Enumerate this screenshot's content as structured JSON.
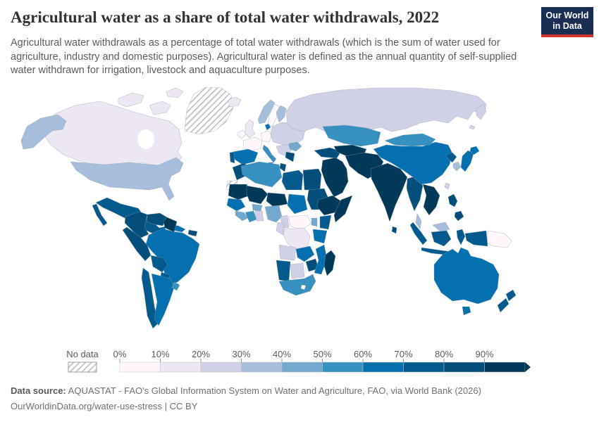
{
  "header": {
    "title": "Agricultural water as a share of total water withdrawals, 2022",
    "subtitle": "Agricultural water withdrawals as a percentage of total water withdrawals (which is the sum of water used for agriculture, industry and domestic purposes). Agricultural water is defined as the annual quantity of self-supplied water withdrawn for irrigation, livestock and aquaculture purposes.",
    "logo": {
      "line1": "Our World",
      "line2": "in Data",
      "bg_color": "#1a2e54",
      "accent_color": "#d0342c"
    }
  },
  "footer": {
    "datasource_label": "Data source:",
    "datasource_text": "AQUASTAT - FAO's Global Information System on Water and Agriculture, FAO, via World Bank (2026)",
    "link_line": "OurWorldinData.org/water-use-stress | CC BY"
  },
  "chart_data": {
    "type": "choropleth",
    "title": "Agricultural water as a share of total water withdrawals",
    "year": 2022,
    "unit": "% of total water withdrawals",
    "projection": "world map",
    "legend": {
      "no_data_label": "No data",
      "tick_labels": [
        "0%",
        "10%",
        "20%",
        "30%",
        "40%",
        "50%",
        "60%",
        "70%",
        "80%",
        "90%"
      ],
      "bin_colors": [
        "#fff7fb",
        "#ece7f2",
        "#d0d1e6",
        "#a6bddb",
        "#74a9cf",
        "#3690c0",
        "#0570b0",
        "#045a8d",
        "#034e7b",
        "#023858"
      ],
      "bin_ranges": [
        "0-10%",
        "10-20%",
        "20-30%",
        "30-40%",
        "40-50%",
        "50-60%",
        "60-70%",
        "70-80%",
        "80-90%",
        "90-100%"
      ],
      "no_data_pattern": "diagonal-hatch"
    },
    "regions": [
      {
        "id": "greenland",
        "name": "Greenland",
        "bin": -1,
        "value_range": "No data"
      },
      {
        "id": "canada",
        "name": "Canada",
        "bin": 1,
        "value_range": "10-20%"
      },
      {
        "id": "united-states",
        "name": "United States",
        "bin": 3,
        "value_range": "30-40%"
      },
      {
        "id": "mexico",
        "name": "Mexico",
        "bin": 7,
        "value_range": "70-80%"
      },
      {
        "id": "central-america",
        "name": "Central America",
        "bin": 7,
        "value_range": "70-80%"
      },
      {
        "id": "cuba",
        "name": "Cuba",
        "bin": 6,
        "value_range": "60-70%"
      },
      {
        "id": "hispaniola",
        "name": "Hispaniola",
        "bin": 8,
        "value_range": "80-90%"
      },
      {
        "id": "colombia",
        "name": "Colombia",
        "bin": 8,
        "value_range": "80-90%"
      },
      {
        "id": "venezuela",
        "name": "Venezuela",
        "bin": 8,
        "value_range": "80-90%"
      },
      {
        "id": "guyanas",
        "name": "Guyana & Suriname",
        "bin": 9,
        "value_range": "90-100%"
      },
      {
        "id": "brazil",
        "name": "Brazil",
        "bin": 6,
        "value_range": "60-70%"
      },
      {
        "id": "peru",
        "name": "Peru",
        "bin": 8,
        "value_range": "80-90%"
      },
      {
        "id": "bolivia",
        "name": "Bolivia",
        "bin": 7,
        "value_range": "70-80%"
      },
      {
        "id": "paraguay",
        "name": "Paraguay",
        "bin": 7,
        "value_range": "70-80%"
      },
      {
        "id": "chile",
        "name": "Chile",
        "bin": 7,
        "value_range": "70-80%"
      },
      {
        "id": "argentina",
        "name": "Argentina",
        "bin": 6,
        "value_range": "60-70%"
      },
      {
        "id": "uruguay",
        "name": "Uruguay",
        "bin": 5,
        "value_range": "50-60%"
      },
      {
        "id": "iceland",
        "name": "Iceland",
        "bin": 1,
        "value_range": "10-20%"
      },
      {
        "id": "united-kingdom",
        "name": "United Kingdom",
        "bin": 1,
        "value_range": "10-20%"
      },
      {
        "id": "ireland",
        "name": "Ireland",
        "bin": 0,
        "value_range": "0-10%"
      },
      {
        "id": "norway",
        "name": "Norway",
        "bin": 3,
        "value_range": "30-40%"
      },
      {
        "id": "sweden",
        "name": "Sweden",
        "bin": 0,
        "value_range": "0-10%"
      },
      {
        "id": "finland",
        "name": "Finland",
        "bin": 3,
        "value_range": "30-40%"
      },
      {
        "id": "denmark",
        "name": "Denmark",
        "bin": 6,
        "value_range": "60-70%"
      },
      {
        "id": "germany",
        "name": "Germany",
        "bin": 0,
        "value_range": "0-10%"
      },
      {
        "id": "france",
        "name": "France",
        "bin": 0,
        "value_range": "0-10%"
      },
      {
        "id": "central-europe",
        "name": "Central & Eastern Europe",
        "bin": 2,
        "value_range": "20-30%"
      },
      {
        "id": "romania",
        "name": "Romania",
        "bin": 4,
        "value_range": "40-50%"
      },
      {
        "id": "spain",
        "name": "Spain",
        "bin": 6,
        "value_range": "60-70%"
      },
      {
        "id": "portugal",
        "name": "Portugal",
        "bin": 7,
        "value_range": "70-80%"
      },
      {
        "id": "italy",
        "name": "Italy",
        "bin": 5,
        "value_range": "50-60%"
      },
      {
        "id": "greece",
        "name": "Greece",
        "bin": 8,
        "value_range": "80-90%"
      },
      {
        "id": "russia",
        "name": "Russia",
        "bin": 2,
        "value_range": "20-30%"
      },
      {
        "id": "turkey",
        "name": "Turkey",
        "bin": 8,
        "value_range": "80-90%"
      },
      {
        "id": "kazakhstan",
        "name": "Kazakhstan",
        "bin": 5,
        "value_range": "50-60%"
      },
      {
        "id": "central-asia",
        "name": "Uzbekistan & Turkmenistan",
        "bin": 9,
        "value_range": "90-100%"
      },
      {
        "id": "iran-afghanistan-pakistan",
        "name": "Iran, Afghanistan & Pakistan",
        "bin": 9,
        "value_range": "90-100%"
      },
      {
        "id": "middle-east",
        "name": "Arabian Peninsula & Iraq",
        "bin": 9,
        "value_range": "90-100%"
      },
      {
        "id": "india",
        "name": "India",
        "bin": 9,
        "value_range": "90-100%"
      },
      {
        "id": "sri-lanka",
        "name": "Sri Lanka",
        "bin": 8,
        "value_range": "80-90%"
      },
      {
        "id": "bangladesh-myanmar",
        "name": "Bangladesh & Myanmar",
        "bin": 8,
        "value_range": "80-90%"
      },
      {
        "id": "indochina",
        "name": "Thailand, Laos, Vietnam & Cambodia",
        "bin": 9,
        "value_range": "90-100%"
      },
      {
        "id": "malaysia",
        "name": "Malaysia",
        "bin": 3,
        "value_range": "30-40%"
      },
      {
        "id": "indonesia",
        "name": "Indonesia",
        "bin": 7,
        "value_range": "70-80%"
      },
      {
        "id": "papua-new-guinea",
        "name": "Papua New Guinea",
        "bin": 0,
        "value_range": "0-10%"
      },
      {
        "id": "philippines",
        "name": "Philippines",
        "bin": 8,
        "value_range": "80-90%"
      },
      {
        "id": "taiwan",
        "name": "Taiwan",
        "bin": 2,
        "value_range": "20-30%"
      },
      {
        "id": "china",
        "name": "China",
        "bin": 6,
        "value_range": "60-70%"
      },
      {
        "id": "mongolia",
        "name": "Mongolia",
        "bin": 5,
        "value_range": "50-60%"
      },
      {
        "id": "north-korea",
        "name": "North Korea",
        "bin": 7,
        "value_range": "70-80%"
      },
      {
        "id": "south-korea",
        "name": "South Korea",
        "bin": 3,
        "value_range": "30-40%"
      },
      {
        "id": "japan",
        "name": "Japan",
        "bin": 6,
        "value_range": "60-70%"
      },
      {
        "id": "australia",
        "name": "Australia",
        "bin": 6,
        "value_range": "60-70%"
      },
      {
        "id": "new-zealand",
        "name": "New Zealand",
        "bin": 7,
        "value_range": "70-80%"
      },
      {
        "id": "morocco",
        "name": "Morocco",
        "bin": 8,
        "value_range": "80-90%"
      },
      {
        "id": "western-sahara",
        "name": "Western Sahara",
        "bin": -1,
        "value_range": "No data"
      },
      {
        "id": "algeria",
        "name": "Algeria",
        "bin": 5,
        "value_range": "50-60%"
      },
      {
        "id": "tunisia",
        "name": "Tunisia",
        "bin": 8,
        "value_range": "80-90%"
      },
      {
        "id": "libya",
        "name": "Libya",
        "bin": 7,
        "value_range": "70-80%"
      },
      {
        "id": "egypt",
        "name": "Egypt",
        "bin": 8,
        "value_range": "80-90%"
      },
      {
        "id": "mauritania",
        "name": "Mauritania",
        "bin": 9,
        "value_range": "90-100%"
      },
      {
        "id": "mali",
        "name": "Mali",
        "bin": 9,
        "value_range": "90-100%"
      },
      {
        "id": "burkina-faso",
        "name": "Burkina Faso",
        "bin": 4,
        "value_range": "40-50%"
      },
      {
        "id": "niger",
        "name": "Niger",
        "bin": 9,
        "value_range": "90-100%"
      },
      {
        "id": "chad",
        "name": "Chad",
        "bin": 6,
        "value_range": "60-70%"
      },
      {
        "id": "sudan",
        "name": "Sudan",
        "bin": 8,
        "value_range": "80-90%"
      },
      {
        "id": "senegal-guinea",
        "name": "Senegal & Guinea",
        "bin": 6,
        "value_range": "60-70%"
      },
      {
        "id": "sierra-leone-liberia",
        "name": "Sierra Leone & Liberia",
        "bin": 4,
        "value_range": "40-50%"
      },
      {
        "id": "cote-divoire",
        "name": "Côte d'Ivoire",
        "bin": 5,
        "value_range": "50-60%"
      },
      {
        "id": "ghana",
        "name": "Ghana",
        "bin": 2,
        "value_range": "20-30%"
      },
      {
        "id": "nigeria",
        "name": "Nigeria",
        "bin": 4,
        "value_range": "40-50%"
      },
      {
        "id": "cameroon",
        "name": "Cameroon",
        "bin": 2,
        "value_range": "20-30%"
      },
      {
        "id": "central-african-republic",
        "name": "Central African Republic",
        "bin": 0,
        "value_range": "0-10%"
      },
      {
        "id": "ethiopia",
        "name": "Ethiopia",
        "bin": 9,
        "value_range": "90-100%"
      },
      {
        "id": "somalia",
        "name": "Somalia",
        "bin": 9,
        "value_range": "90-100%"
      },
      {
        "id": "kenya",
        "name": "Kenya",
        "bin": 7,
        "value_range": "70-80%"
      },
      {
        "id": "uganda",
        "name": "Uganda",
        "bin": 4,
        "value_range": "40-50%"
      },
      {
        "id": "tanzania",
        "name": "Tanzania",
        "bin": 6,
        "value_range": "60-70%"
      },
      {
        "id": "drc",
        "name": "Democratic Republic of Congo",
        "bin": 1,
        "value_range": "10-20%"
      },
      {
        "id": "congo-gabon",
        "name": "Congo & Gabon",
        "bin": 2,
        "value_range": "20-30%"
      },
      {
        "id": "angola",
        "name": "Angola",
        "bin": 2,
        "value_range": "20-30%"
      },
      {
        "id": "zambia",
        "name": "Zambia",
        "bin": 6,
        "value_range": "60-70%"
      },
      {
        "id": "zimbabwe",
        "name": "Zimbabwe",
        "bin": 8,
        "value_range": "80-90%"
      },
      {
        "id": "mozambique",
        "name": "Mozambique",
        "bin": 6,
        "value_range": "60-70%"
      },
      {
        "id": "namibia",
        "name": "Namibia",
        "bin": 7,
        "value_range": "70-80%"
      },
      {
        "id": "botswana",
        "name": "Botswana",
        "bin": 2,
        "value_range": "20-30%"
      },
      {
        "id": "south-africa",
        "name": "South Africa",
        "bin": 5,
        "value_range": "50-60%"
      },
      {
        "id": "lesotho",
        "name": "Lesotho",
        "bin": 0,
        "value_range": "0-10%"
      },
      {
        "id": "madagascar",
        "name": "Madagascar",
        "bin": 9,
        "value_range": "90-100%"
      }
    ]
  }
}
